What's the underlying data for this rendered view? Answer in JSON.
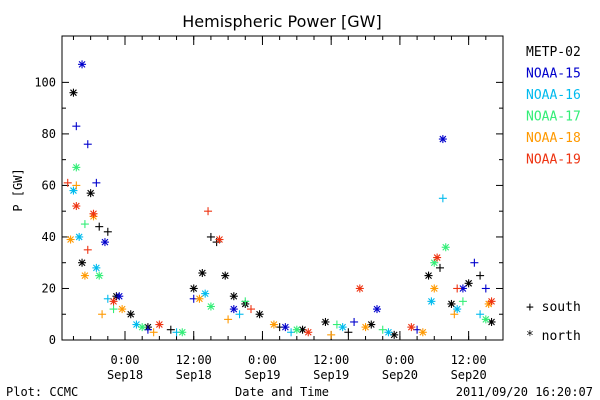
{
  "chart_data": {
    "type": "scatter",
    "title": "Hemispheric Power [GW]",
    "ylabel": "P [GW]",
    "xlabel": "Date and Time",
    "footer_left": "Plot: CCMC",
    "footer_right": "2011/09/20 16:20:07",
    "ylim": [
      0,
      118
    ],
    "y_ticks": [
      0,
      20,
      40,
      60,
      80,
      100
    ],
    "xlim": [
      "2011-09-17 13:00",
      "2011-09-20 18:00"
    ],
    "x_ticks": [
      {
        "time": "2011-09-18 00:00",
        "label1": "0:00",
        "label2": "Sep18"
      },
      {
        "time": "2011-09-18 12:00",
        "label1": "12:00",
        "label2": "Sep18"
      },
      {
        "time": "2011-09-19 00:00",
        "label1": "0:00",
        "label2": "Sep19"
      },
      {
        "time": "2011-09-19 12:00",
        "label1": "12:00",
        "label2": "Sep19"
      },
      {
        "time": "2011-09-20 00:00",
        "label1": "0:00",
        "label2": "Sep20"
      },
      {
        "time": "2011-09-20 12:00",
        "label1": "12:00",
        "label2": "Sep20"
      }
    ],
    "legend_markers": [
      {
        "symbol": "+",
        "label": "south"
      },
      {
        "symbol": "*",
        "label": "north"
      }
    ],
    "series": [
      {
        "name": "METP-02",
        "color": "#000000",
        "points": [
          {
            "x": "2011-09-17 15:00",
            "y": 96,
            "hemi": "north"
          },
          {
            "x": "2011-09-17 16:30",
            "y": 30,
            "hemi": "north"
          },
          {
            "x": "2011-09-17 18:00",
            "y": 57,
            "hemi": "north"
          },
          {
            "x": "2011-09-17 19:30",
            "y": 44,
            "hemi": "south"
          },
          {
            "x": "2011-09-17 21:00",
            "y": 42,
            "hemi": "south"
          },
          {
            "x": "2011-09-17 22:30",
            "y": 17,
            "hemi": "north"
          },
          {
            "x": "2011-09-18 01:00",
            "y": 10,
            "hemi": "north"
          },
          {
            "x": "2011-09-18 04:00",
            "y": 5,
            "hemi": "north"
          },
          {
            "x": "2011-09-18 08:00",
            "y": 4,
            "hemi": "south"
          },
          {
            "x": "2011-09-18 12:00",
            "y": 20,
            "hemi": "north"
          },
          {
            "x": "2011-09-18 13:30",
            "y": 26,
            "hemi": "north"
          },
          {
            "x": "2011-09-18 15:00",
            "y": 40,
            "hemi": "south"
          },
          {
            "x": "2011-09-18 16:00",
            "y": 38,
            "hemi": "south"
          },
          {
            "x": "2011-09-18 17:30",
            "y": 25,
            "hemi": "north"
          },
          {
            "x": "2011-09-18 19:00",
            "y": 17,
            "hemi": "north"
          },
          {
            "x": "2011-09-18 21:00",
            "y": 14,
            "hemi": "north"
          },
          {
            "x": "2011-09-18 23:30",
            "y": 10,
            "hemi": "north"
          },
          {
            "x": "2011-09-19 03:00",
            "y": 5,
            "hemi": "south"
          },
          {
            "x": "2011-09-19 07:00",
            "y": 4,
            "hemi": "north"
          },
          {
            "x": "2011-09-19 11:00",
            "y": 7,
            "hemi": "north"
          },
          {
            "x": "2011-09-19 15:00",
            "y": 3,
            "hemi": "south"
          },
          {
            "x": "2011-09-19 19:00",
            "y": 6,
            "hemi": "north"
          },
          {
            "x": "2011-09-19 23:00",
            "y": 2,
            "hemi": "north"
          },
          {
            "x": "2011-09-20 05:00",
            "y": 25,
            "hemi": "north"
          },
          {
            "x": "2011-09-20 07:00",
            "y": 28,
            "hemi": "south"
          },
          {
            "x": "2011-09-20 09:00",
            "y": 14,
            "hemi": "north"
          },
          {
            "x": "2011-09-20 12:00",
            "y": 22,
            "hemi": "north"
          },
          {
            "x": "2011-09-20 14:00",
            "y": 25,
            "hemi": "south"
          },
          {
            "x": "2011-09-20 16:00",
            "y": 7,
            "hemi": "north"
          }
        ]
      },
      {
        "name": "NOAA-15",
        "color": "#0000cc",
        "points": [
          {
            "x": "2011-09-17 15:30",
            "y": 83,
            "hemi": "south"
          },
          {
            "x": "2011-09-17 16:30",
            "y": 107,
            "hemi": "north"
          },
          {
            "x": "2011-09-17 17:30",
            "y": 76,
            "hemi": "south"
          },
          {
            "x": "2011-09-17 19:00",
            "y": 61,
            "hemi": "south"
          },
          {
            "x": "2011-09-17 20:30",
            "y": 38,
            "hemi": "north"
          },
          {
            "x": "2011-09-17 23:00",
            "y": 17,
            "hemi": "north"
          },
          {
            "x": "2011-09-18 04:00",
            "y": 4,
            "hemi": "south"
          },
          {
            "x": "2011-09-18 12:00",
            "y": 16,
            "hemi": "south"
          },
          {
            "x": "2011-09-18 19:00",
            "y": 12,
            "hemi": "north"
          },
          {
            "x": "2011-09-19 04:00",
            "y": 5,
            "hemi": "north"
          },
          {
            "x": "2011-09-19 16:00",
            "y": 7,
            "hemi": "south"
          },
          {
            "x": "2011-09-19 20:00",
            "y": 12,
            "hemi": "north"
          },
          {
            "x": "2011-09-20 03:00",
            "y": 4,
            "hemi": "south"
          },
          {
            "x": "2011-09-20 07:30",
            "y": 78,
            "hemi": "north"
          },
          {
            "x": "2011-09-20 11:00",
            "y": 20,
            "hemi": "north"
          },
          {
            "x": "2011-09-20 13:00",
            "y": 30,
            "hemi": "south"
          },
          {
            "x": "2011-09-20 15:00",
            "y": 20,
            "hemi": "south"
          }
        ]
      },
      {
        "name": "NOAA-16",
        "color": "#00bbee",
        "points": [
          {
            "x": "2011-09-17 15:00",
            "y": 58,
            "hemi": "north"
          },
          {
            "x": "2011-09-17 16:00",
            "y": 40,
            "hemi": "north"
          },
          {
            "x": "2011-09-17 19:00",
            "y": 28,
            "hemi": "north"
          },
          {
            "x": "2011-09-17 21:00",
            "y": 16,
            "hemi": "south"
          },
          {
            "x": "2011-09-18 02:00",
            "y": 6,
            "hemi": "north"
          },
          {
            "x": "2011-09-18 09:00",
            "y": 3,
            "hemi": "south"
          },
          {
            "x": "2011-09-18 14:00",
            "y": 18,
            "hemi": "north"
          },
          {
            "x": "2011-09-18 20:00",
            "y": 10,
            "hemi": "south"
          },
          {
            "x": "2011-09-19 05:00",
            "y": 3,
            "hemi": "south"
          },
          {
            "x": "2011-09-19 14:00",
            "y": 5,
            "hemi": "north"
          },
          {
            "x": "2011-09-19 22:00",
            "y": 3,
            "hemi": "north"
          },
          {
            "x": "2011-09-20 05:30",
            "y": 15,
            "hemi": "north"
          },
          {
            "x": "2011-09-20 07:30",
            "y": 55,
            "hemi": "south"
          },
          {
            "x": "2011-09-20 10:00",
            "y": 12,
            "hemi": "north"
          },
          {
            "x": "2011-09-20 14:00",
            "y": 10,
            "hemi": "south"
          }
        ]
      },
      {
        "name": "NOAA-17",
        "color": "#33ee77",
        "points": [
          {
            "x": "2011-09-17 15:30",
            "y": 67,
            "hemi": "north"
          },
          {
            "x": "2011-09-17 17:00",
            "y": 45,
            "hemi": "south"
          },
          {
            "x": "2011-09-17 19:30",
            "y": 25,
            "hemi": "north"
          },
          {
            "x": "2011-09-17 22:00",
            "y": 12,
            "hemi": "south"
          },
          {
            "x": "2011-09-18 03:00",
            "y": 5,
            "hemi": "north"
          },
          {
            "x": "2011-09-18 10:00",
            "y": 3,
            "hemi": "north"
          },
          {
            "x": "2011-09-18 15:00",
            "y": 13,
            "hemi": "north"
          },
          {
            "x": "2011-09-18 21:00",
            "y": 15,
            "hemi": "south"
          },
          {
            "x": "2011-09-19 06:00",
            "y": 4,
            "hemi": "north"
          },
          {
            "x": "2011-09-19 13:00",
            "y": 6,
            "hemi": "south"
          },
          {
            "x": "2011-09-19 21:00",
            "y": 4,
            "hemi": "south"
          },
          {
            "x": "2011-09-20 06:00",
            "y": 30,
            "hemi": "north"
          },
          {
            "x": "2011-09-20 08:00",
            "y": 36,
            "hemi": "north"
          },
          {
            "x": "2011-09-20 11:00",
            "y": 15,
            "hemi": "south"
          },
          {
            "x": "2011-09-20 15:00",
            "y": 8,
            "hemi": "north"
          }
        ]
      },
      {
        "name": "NOAA-18",
        "color": "#ff9900",
        "points": [
          {
            "x": "2011-09-17 14:30",
            "y": 39,
            "hemi": "north"
          },
          {
            "x": "2011-09-17 15:30",
            "y": 60,
            "hemi": "south"
          },
          {
            "x": "2011-09-17 17:00",
            "y": 25,
            "hemi": "north"
          },
          {
            "x": "2011-09-17 18:30",
            "y": 48,
            "hemi": "north"
          },
          {
            "x": "2011-09-17 20:00",
            "y": 10,
            "hemi": "south"
          },
          {
            "x": "2011-09-17 23:30",
            "y": 12,
            "hemi": "north"
          },
          {
            "x": "2011-09-18 05:00",
            "y": 3,
            "hemi": "south"
          },
          {
            "x": "2011-09-18 13:00",
            "y": 16,
            "hemi": "north"
          },
          {
            "x": "2011-09-18 18:00",
            "y": 8,
            "hemi": "south"
          },
          {
            "x": "2011-09-19 02:00",
            "y": 6,
            "hemi": "north"
          },
          {
            "x": "2011-09-19 12:00",
            "y": 2,
            "hemi": "south"
          },
          {
            "x": "2011-09-19 18:00",
            "y": 5,
            "hemi": "north"
          },
          {
            "x": "2011-09-20 04:00",
            "y": 3,
            "hemi": "north"
          },
          {
            "x": "2011-09-20 06:00",
            "y": 20,
            "hemi": "north"
          },
          {
            "x": "2011-09-20 09:30",
            "y": 10,
            "hemi": "south"
          },
          {
            "x": "2011-09-20 15:30",
            "y": 14,
            "hemi": "north"
          }
        ]
      },
      {
        "name": "NOAA-19",
        "color": "#ee3311",
        "points": [
          {
            "x": "2011-09-17 14:00",
            "y": 61,
            "hemi": "south"
          },
          {
            "x": "2011-09-17 15:30",
            "y": 52,
            "hemi": "north"
          },
          {
            "x": "2011-09-17 17:30",
            "y": 35,
            "hemi": "south"
          },
          {
            "x": "2011-09-17 18:30",
            "y": 49,
            "hemi": "north"
          },
          {
            "x": "2011-09-17 22:00",
            "y": 15,
            "hemi": "north"
          },
          {
            "x": "2011-09-18 06:00",
            "y": 6,
            "hemi": "north"
          },
          {
            "x": "2011-09-18 14:30",
            "y": 50,
            "hemi": "south"
          },
          {
            "x": "2011-09-18 16:30",
            "y": 39,
            "hemi": "north"
          },
          {
            "x": "2011-09-18 22:00",
            "y": 12,
            "hemi": "south"
          },
          {
            "x": "2011-09-19 08:00",
            "y": 3,
            "hemi": "north"
          },
          {
            "x": "2011-09-19 17:00",
            "y": 20,
            "hemi": "north"
          },
          {
            "x": "2011-09-20 02:00",
            "y": 5,
            "hemi": "north"
          },
          {
            "x": "2011-09-20 06:30",
            "y": 32,
            "hemi": "north"
          },
          {
            "x": "2011-09-20 10:00",
            "y": 20,
            "hemi": "south"
          },
          {
            "x": "2011-09-20 16:00",
            "y": 15,
            "hemi": "north"
          }
        ]
      }
    ]
  }
}
